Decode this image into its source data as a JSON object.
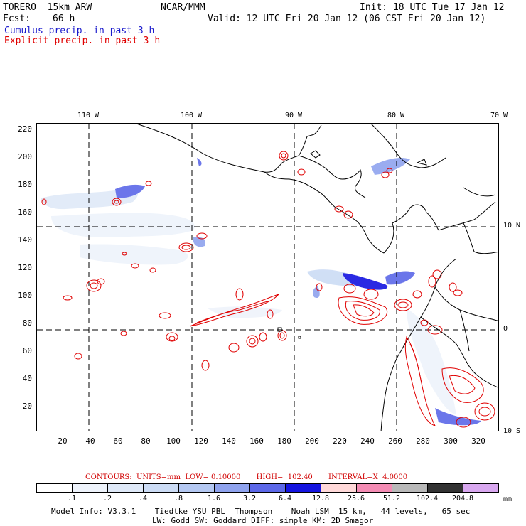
{
  "header": {
    "model": "TORERO  15km ARW",
    "org": "NCAR/MMM",
    "init": "Init: 18 UTC Tue 17 Jan 12",
    "fcst_label": "Fcst:",
    "fcst_value": "66 h",
    "valid": "Valid: 12 UTC Fri 20 Jan 12 (06 CST Fri 20 Jan 12)",
    "cumulus": "Cumulus precip. in past 3 h",
    "explicit": "Explicit precip. in past 3 h"
  },
  "colors": {
    "cumulus_text": "#1a1acc",
    "explicit_text": "#e00000",
    "contour": "#e00000",
    "palette": [
      "#ffffff",
      "#eef3fb",
      "#dfe9f8",
      "#ccdcf5",
      "#b4c8f2",
      "#8fa3ee",
      "#5c68e8",
      "#1414e0",
      "#ffd9d9",
      "#f48cb4",
      "#b9b9b9",
      "#333333",
      "#d9a8f0"
    ]
  },
  "map": {
    "y_ticks": [
      "220",
      "200",
      "180",
      "160",
      "140",
      "120",
      "100",
      "80",
      "60",
      "40",
      "20"
    ],
    "x_ticks": [
      "20",
      "40",
      "60",
      "80",
      "100",
      "120",
      "140",
      "160",
      "180",
      "200",
      "220",
      "240",
      "260",
      "280",
      "300",
      "320"
    ],
    "lon_labels": [
      "110 W",
      "100 W",
      "90 W",
      "80 W",
      "70 W"
    ],
    "lat_labels": [
      "10 N",
      "0",
      "10 S"
    ]
  },
  "legend": {
    "contours": "CONTOURS:  UNITS=mm  LOW= 0.10000       HIGH=  102.40       INTERVAL=X  4.0000",
    "values": [
      ".1",
      ".2",
      ".4",
      ".8",
      "1.6",
      "3.2",
      "6.4",
      "12.8",
      "25.6",
      "51.2",
      "102.4",
      "204.8"
    ],
    "unit": "mm"
  },
  "footer": {
    "line1": "Model Info: V3.3.1    Tiedtke YSU PBL  Thompson    Noah LSM  15 km,   44 levels,   65 sec",
    "line2": "LW: Godd SW: Goddard DIFF: simple KM: 2D Smagor"
  }
}
